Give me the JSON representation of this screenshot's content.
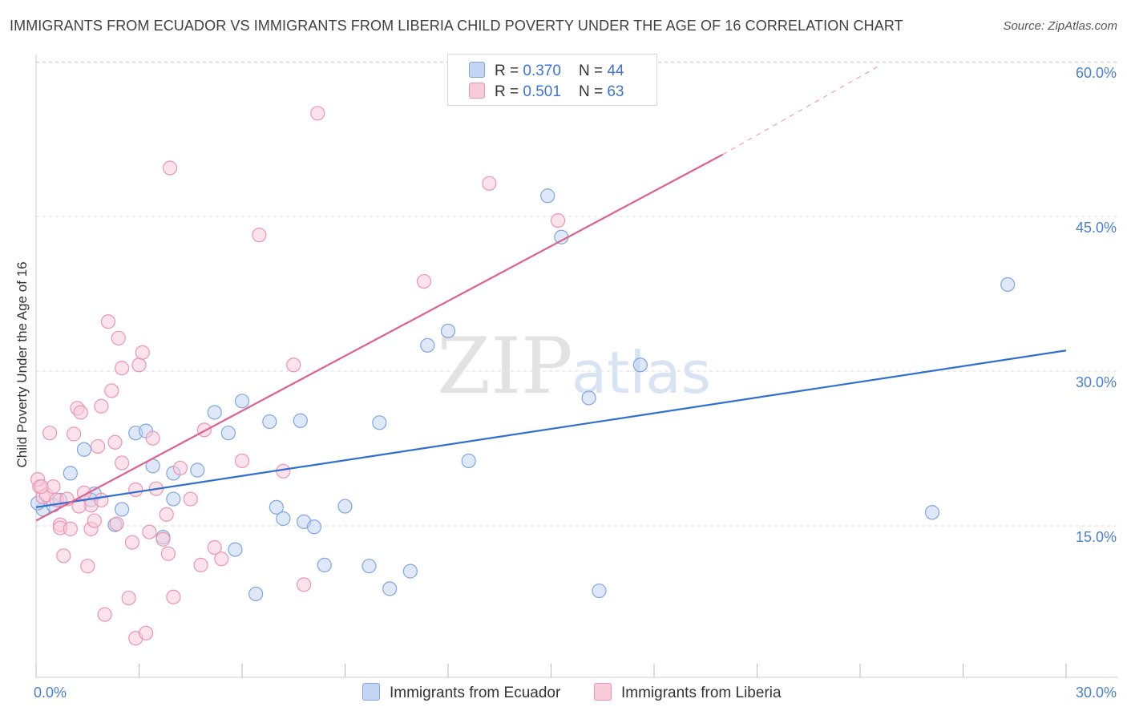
{
  "title": "IMMIGRANTS FROM ECUADOR VS IMMIGRANTS FROM LIBERIA CHILD POVERTY UNDER THE AGE OF 16 CORRELATION CHART",
  "source": "Source: ZipAtlas.com",
  "watermark": {
    "zip": "ZIP",
    "atlas": "atlas"
  },
  "legend": {
    "ecuador": {
      "r_label": "R =",
      "r_value": "0.370",
      "n_label": "N =",
      "n_value": "44"
    },
    "liberia": {
      "r_label": "R =",
      "r_value": "0.501",
      "n_label": "N =",
      "n_value": "63"
    }
  },
  "chart_data": {
    "type": "scatter",
    "title": "IMMIGRANTS FROM ECUADOR VS IMMIGRANTS FROM LIBERIA CHILD POVERTY UNDER THE AGE OF 16 CORRELATION CHART",
    "xlabel": "",
    "ylabel": "Child Poverty Under the Age of 16",
    "xlim": [
      0,
      30
    ],
    "ylim": [
      0,
      60
    ],
    "x_tick_labels": [
      "0.0%",
      "30.0%"
    ],
    "y_ticks": [
      15,
      30,
      45,
      60
    ],
    "y_tick_labels": [
      "15.0%",
      "30.0%",
      "45.0%",
      "60.0%"
    ],
    "series": [
      {
        "name": "Immigrants from Ecuador",
        "color": "#a8c4ec",
        "line_color": "#2f6fd0",
        "trend": {
          "x0": 0,
          "y0": 16.8,
          "x1": 30,
          "y1": 32.0
        },
        "points": [
          [
            0.2,
            16.6
          ],
          [
            0.5,
            17.0
          ],
          [
            0.7,
            17.5
          ],
          [
            1.0,
            20.1
          ],
          [
            1.4,
            22.4
          ],
          [
            1.7,
            18.1
          ],
          [
            1.6,
            17.5
          ],
          [
            2.3,
            15.1
          ],
          [
            2.5,
            16.6
          ],
          [
            2.9,
            24.0
          ],
          [
            3.2,
            24.2
          ],
          [
            3.4,
            20.8
          ],
          [
            3.7,
            13.9
          ],
          [
            4.0,
            20.1
          ],
          [
            4.0,
            17.6
          ],
          [
            4.7,
            20.4
          ],
          [
            5.2,
            26.0
          ],
          [
            5.6,
            24.0
          ],
          [
            5.8,
            12.7
          ],
          [
            6.0,
            27.1
          ],
          [
            6.4,
            8.4
          ],
          [
            6.8,
            25.1
          ],
          [
            7.0,
            16.8
          ],
          [
            7.2,
            15.7
          ],
          [
            7.7,
            25.2
          ],
          [
            7.8,
            15.4
          ],
          [
            8.1,
            14.9
          ],
          [
            8.4,
            11.2
          ],
          [
            9.0,
            16.9
          ],
          [
            9.7,
            11.1
          ],
          [
            10.0,
            25.0
          ],
          [
            10.3,
            8.9
          ],
          [
            10.9,
            10.6
          ],
          [
            11.4,
            32.5
          ],
          [
            12.0,
            33.9
          ],
          [
            12.6,
            21.3
          ],
          [
            14.9,
            47.0
          ],
          [
            15.3,
            43.0
          ],
          [
            16.1,
            27.4
          ],
          [
            16.4,
            8.7
          ],
          [
            17.6,
            30.6
          ],
          [
            26.1,
            16.3
          ],
          [
            28.3,
            38.4
          ],
          [
            0.05,
            17.2
          ]
        ]
      },
      {
        "name": "Immigrants from Liberia",
        "color": "#f5b8cc",
        "line_color": "#e0608c",
        "trend": {
          "x0": 0,
          "y0": 15.5,
          "x1": 20.0,
          "y1": 51.0
        },
        "trend_ext": {
          "x0": 20.0,
          "y0": 51.0,
          "x1": 24.5,
          "y1": 59.5
        },
        "points": [
          [
            0.1,
            18.8
          ],
          [
            0.2,
            17.8
          ],
          [
            0.3,
            18.0
          ],
          [
            0.4,
            24.0
          ],
          [
            0.5,
            18.8
          ],
          [
            0.6,
            17.5
          ],
          [
            0.7,
            15.1
          ],
          [
            0.7,
            14.8
          ],
          [
            0.8,
            12.1
          ],
          [
            0.9,
            17.6
          ],
          [
            1.0,
            14.7
          ],
          [
            1.1,
            23.9
          ],
          [
            1.2,
            26.4
          ],
          [
            1.3,
            26.0
          ],
          [
            1.4,
            18.2
          ],
          [
            1.5,
            11.1
          ],
          [
            1.6,
            17.0
          ],
          [
            1.6,
            14.7
          ],
          [
            1.7,
            15.5
          ],
          [
            1.8,
            22.7
          ],
          [
            1.9,
            17.5
          ],
          [
            1.9,
            26.6
          ],
          [
            2.0,
            6.4
          ],
          [
            2.1,
            34.8
          ],
          [
            2.2,
            28.1
          ],
          [
            2.3,
            23.1
          ],
          [
            2.4,
            33.2
          ],
          [
            2.5,
            30.3
          ],
          [
            2.5,
            21.1
          ],
          [
            2.7,
            8.0
          ],
          [
            2.8,
            13.4
          ],
          [
            2.9,
            4.1
          ],
          [
            2.9,
            18.5
          ],
          [
            3.0,
            30.6
          ],
          [
            3.1,
            31.8
          ],
          [
            3.2,
            4.6
          ],
          [
            3.3,
            14.4
          ],
          [
            3.4,
            23.5
          ],
          [
            3.5,
            18.6
          ],
          [
            3.7,
            13.7
          ],
          [
            3.8,
            16.1
          ],
          [
            3.9,
            49.7
          ],
          [
            4.0,
            8.1
          ],
          [
            4.2,
            20.6
          ],
          [
            4.5,
            17.6
          ],
          [
            4.8,
            11.2
          ],
          [
            4.9,
            24.3
          ],
          [
            5.2,
            12.9
          ],
          [
            5.4,
            11.8
          ],
          [
            6.0,
            21.3
          ],
          [
            6.5,
            43.2
          ],
          [
            7.2,
            20.3
          ],
          [
            7.5,
            30.6
          ],
          [
            7.8,
            9.3
          ],
          [
            8.2,
            55.0
          ],
          [
            11.3,
            38.7
          ],
          [
            13.2,
            48.2
          ],
          [
            15.2,
            44.6
          ],
          [
            0.05,
            19.5
          ],
          [
            0.15,
            18.8
          ],
          [
            1.25,
            16.9
          ],
          [
            2.35,
            15.2
          ],
          [
            3.85,
            12.3
          ]
        ]
      }
    ]
  },
  "bottom_legend": {
    "ecuador_label": "Immigrants from Ecuador",
    "liberia_label": "Immigrants from Liberia"
  },
  "colors": {
    "ecuador_fill": "#c2d6f3",
    "ecuador_stroke": "#7ea6e0",
    "liberia_fill": "#f9cad9",
    "liberia_stroke": "#eb95b3",
    "axis_label": "#4a7fd0"
  }
}
